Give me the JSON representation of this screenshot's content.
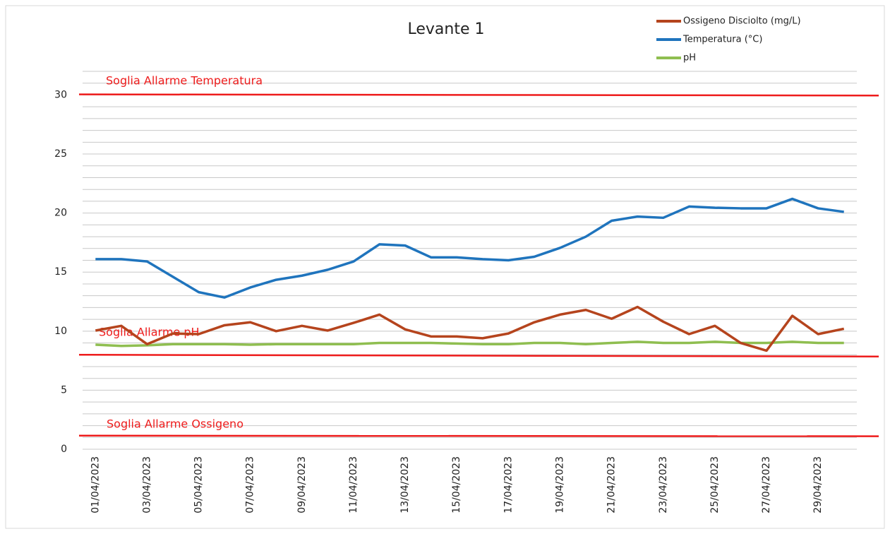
{
  "chart_data": {
    "type": "line",
    "title": "Levante 1",
    "categories": [
      "01/04/2023",
      null,
      "03/04/2023",
      null,
      "05/04/2023",
      null,
      "07/04/2023",
      null,
      "09/04/2023",
      null,
      "11/04/2023",
      null,
      "13/04/2023",
      null,
      "15/04/2023",
      null,
      "17/04/2023",
      null,
      "19/04/2023",
      null,
      "21/04/2023",
      null,
      "23/04/2023",
      null,
      "25/04/2023",
      null,
      "27/04/2023",
      null,
      "29/04/2023",
      null
    ],
    "series": [
      {
        "name": "Ossigeno Disciolto (mg/L)",
        "color": "#b5441d",
        "values": [
          10.05,
          10.45,
          8.9,
          9.8,
          9.75,
          10.5,
          10.75,
          10.0,
          10.45,
          10.05,
          10.7,
          11.4,
          10.15,
          9.55,
          9.55,
          9.4,
          9.8,
          10.75,
          11.4,
          11.8,
          11.05,
          12.05,
          10.8,
          9.75,
          10.45,
          9.0,
          8.35,
          11.3,
          9.75,
          10.2
        ]
      },
      {
        "name": "Temperatura (°C)",
        "color": "#1f74bd",
        "values": [
          16.1,
          16.1,
          15.9,
          14.6,
          13.3,
          12.85,
          13.7,
          14.35,
          14.7,
          15.2,
          15.9,
          17.35,
          17.25,
          16.25,
          16.25,
          16.1,
          16.0,
          16.3,
          17.05,
          18.0,
          19.35,
          19.7,
          19.6,
          20.55,
          20.45,
          20.4,
          20.4,
          21.2,
          20.4,
          20.1
        ]
      },
      {
        "name": "pH",
        "color": "#8fbe50",
        "values": [
          8.85,
          8.75,
          8.8,
          8.9,
          8.9,
          8.9,
          8.85,
          8.9,
          8.9,
          8.9,
          8.9,
          9.0,
          9.0,
          9.0,
          8.95,
          8.9,
          8.9,
          9.0,
          9.0,
          8.9,
          9.0,
          9.1,
          9.0,
          9.0,
          9.1,
          9.0,
          9.0,
          9.1,
          9.0,
          9.0
        ]
      }
    ],
    "thresholds": [
      {
        "name": "Soglia Allarme Temperatura",
        "color": "#ee1c1c",
        "values": [
          30.05,
          29.95
        ]
      },
      {
        "name": "Soglia  Allarme pH",
        "color": "#ee1c1c",
        "values": [
          8.0,
          7.85
        ]
      },
      {
        "name": "Soglia  Allarme Ossigeno",
        "color": "#ee1c1c",
        "values": [
          1.15,
          1.1
        ]
      }
    ],
    "ylim": [
      0,
      32
    ],
    "yticks": [
      0,
      5,
      10,
      15,
      20,
      25,
      30
    ],
    "ygrid": [
      0,
      1,
      2,
      3,
      4,
      5,
      6,
      7,
      8,
      9,
      10,
      11,
      12,
      13,
      14,
      15,
      16,
      17,
      18,
      19,
      20,
      21,
      22,
      23,
      24,
      25,
      26,
      27,
      28,
      29,
      30,
      31,
      32
    ],
    "legend": "top-right"
  }
}
